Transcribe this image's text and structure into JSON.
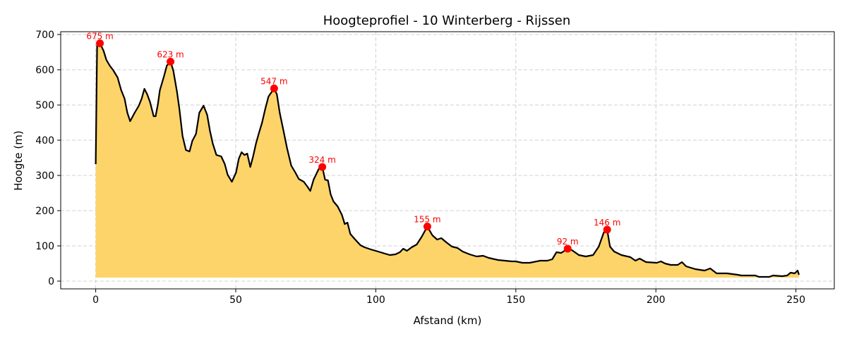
{
  "chart_data": {
    "type": "area",
    "title": "Hoogteprofiel - 10 Winterberg - Rijssen",
    "xlabel": "Afstand (km)",
    "ylabel": "Hoogte (m)",
    "xlim": [
      -12.5,
      263.7
    ],
    "ylim": [
      -22,
      708
    ],
    "xticks": [
      0,
      50,
      100,
      150,
      200,
      250
    ],
    "yticks": [
      0,
      100,
      200,
      300,
      400,
      500,
      600,
      700
    ],
    "grid": true,
    "fill_baseline": 10,
    "colors": {
      "fill": "#fdd46a",
      "line": "#000000",
      "peak": "#ff0000",
      "grid": "#d0d0d0"
    },
    "profile": {
      "x": [
        0,
        0.5,
        1.5,
        2.8,
        3.8,
        5,
        6.3,
        7.8,
        9.1,
        10.3,
        11.3,
        12.3,
        13.9,
        15.4,
        16.4,
        17.4,
        18.4,
        19.4,
        20.7,
        21.4,
        22.2,
        22.9,
        24.4,
        25.4,
        26.7,
        27.7,
        29,
        29.9,
        31,
        32.2,
        33.5,
        34.5,
        35.8,
        37,
        38.5,
        39.8,
        40.8,
        41.8,
        43.1,
        44.8,
        46.1,
        47.1,
        48.6,
        50.1,
        51.1,
        52.1,
        53.1,
        54.1,
        55.2,
        56.2,
        57.2,
        58.2,
        59.4,
        60.5,
        61.7,
        63.7,
        64.7,
        65.7,
        67,
        68.3,
        69.8,
        71.3,
        72.5,
        74.3,
        75.6,
        76.6,
        77.8,
        79.6,
        80.9,
        81.9,
        82.9,
        83.9,
        84.9,
        86.4,
        87.9,
        88.9,
        89.9,
        90.9,
        92.4,
        94.5,
        96,
        98.2,
        100.8,
        103.3,
        105,
        107,
        108.6,
        109.8,
        111.1,
        112.8,
        114.6,
        116.4,
        118.4,
        120.2,
        121.9,
        123.4,
        125.2,
        127.2,
        129.2,
        131,
        133.5,
        136,
        138.3,
        140.3,
        143.6,
        146.1,
        148.6,
        149.9,
        152.4,
        154.9,
        158.7,
        161.2,
        163,
        164.5,
        166.2,
        168.5,
        170,
        172.5,
        175,
        177.6,
        179.6,
        181.4,
        182.6,
        183.6,
        185.1,
        187.7,
        190.9,
        192.7,
        194.2,
        196.5,
        200.3,
        201.8,
        203.3,
        205.3,
        207.8,
        209.3,
        210.8,
        214.1,
        217.4,
        219.4,
        221.7,
        225.4,
        229.2,
        230.5,
        234.3,
        235.5,
        236.8,
        240.5,
        241.8,
        245.1,
        246.9,
        248.1,
        249.6,
        250.6,
        251.1
      ],
      "y": [
        332,
        674,
        675,
        654,
        628,
        612,
        598,
        578,
        542,
        518,
        478,
        454,
        478,
        498,
        518,
        546,
        530,
        508,
        468,
        468,
        502,
        542,
        582,
        612,
        623,
        598,
        538,
        488,
        412,
        372,
        368,
        398,
        418,
        478,
        498,
        472,
        426,
        390,
        358,
        354,
        332,
        302,
        282,
        308,
        348,
        366,
        358,
        362,
        324,
        354,
        390,
        418,
        450,
        488,
        524,
        547,
        530,
        478,
        428,
        378,
        328,
        308,
        290,
        282,
        268,
        256,
        288,
        318,
        324,
        288,
        286,
        246,
        226,
        212,
        188,
        162,
        166,
        134,
        120,
        102,
        96,
        90,
        84,
        78,
        74,
        76,
        82,
        92,
        86,
        96,
        104,
        126,
        155,
        130,
        118,
        122,
        110,
        98,
        94,
        84,
        76,
        70,
        72,
        66,
        60,
        58,
        56,
        56,
        52,
        52,
        58,
        58,
        62,
        82,
        80,
        92,
        88,
        74,
        70,
        74,
        98,
        138,
        146,
        98,
        84,
        74,
        68,
        58,
        64,
        54,
        52,
        56,
        50,
        46,
        46,
        54,
        42,
        34,
        30,
        36,
        22,
        22,
        18,
        16,
        16,
        16,
        12,
        12,
        16,
        14,
        16,
        24,
        22,
        30,
        18
      ]
    },
    "peaks": [
      {
        "x": 1.5,
        "y": 675,
        "label": "675 m"
      },
      {
        "x": 26.7,
        "y": 623,
        "label": "623 m"
      },
      {
        "x": 63.7,
        "y": 547,
        "label": "547 m"
      },
      {
        "x": 80.9,
        "y": 324,
        "label": "324 m"
      },
      {
        "x": 118.4,
        "y": 155,
        "label": "155 m"
      },
      {
        "x": 168.5,
        "y": 92,
        "label": "92 m"
      },
      {
        "x": 182.6,
        "y": 146,
        "label": "146 m"
      }
    ]
  }
}
